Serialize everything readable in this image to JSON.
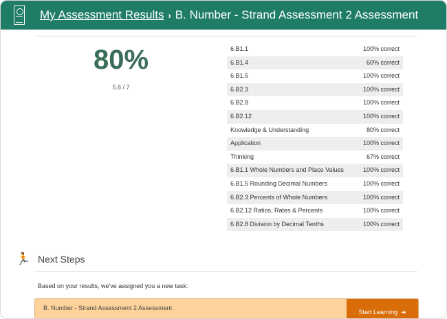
{
  "header": {
    "breadcrumb_link": "My Assessment Results",
    "separator": "›",
    "title": "B. Number - Strand Assessment 2 Assessment",
    "icon": "report-card-icon"
  },
  "score": {
    "percent": "80%",
    "fraction": "5.6 / 7"
  },
  "results": [
    {
      "label": "6.B1.1",
      "value": "100% correct"
    },
    {
      "label": "6.B1.4",
      "value": "60% correct"
    },
    {
      "label": "6.B1.5",
      "value": "100% correct"
    },
    {
      "label": "6.B2.3",
      "value": "100% correct"
    },
    {
      "label": "6.B2.8",
      "value": "100% correct"
    },
    {
      "label": "6.B2.12",
      "value": "100% correct"
    },
    {
      "label": "Knowledge & Understanding",
      "value": "80% correct"
    },
    {
      "label": "Application",
      "value": "100% correct"
    },
    {
      "label": "Thinking",
      "value": "67% correct"
    },
    {
      "label": "6.B1.1 Whole Numbers and Place Values",
      "value": "100% correct"
    },
    {
      "label": "6.B1.5 Rounding Decimal Numbers",
      "value": "100% correct"
    },
    {
      "label": "6.B2.3 Percents of Whole Numbers",
      "value": "100% correct"
    },
    {
      "label": "6.B2.12 Ratios, Rates & Percents",
      "value": "100% correct"
    },
    {
      "label": "6.B2.8 Division by Decimal Tenths",
      "value": "100% correct"
    }
  ],
  "next_steps": {
    "title": "Next Steps",
    "icon": "stairs-runner-icon",
    "intro": "Based on your results, we've assigned you a new task:",
    "task_name": "B. Number - Strand Assessment 2 Assessment",
    "button": "Start Learning",
    "button_arrow": "➜"
  },
  "colors": {
    "header": "#1f7c66",
    "score": "#3b6d59",
    "task_bg": "#fdd39b",
    "button": "#d96d0a"
  }
}
